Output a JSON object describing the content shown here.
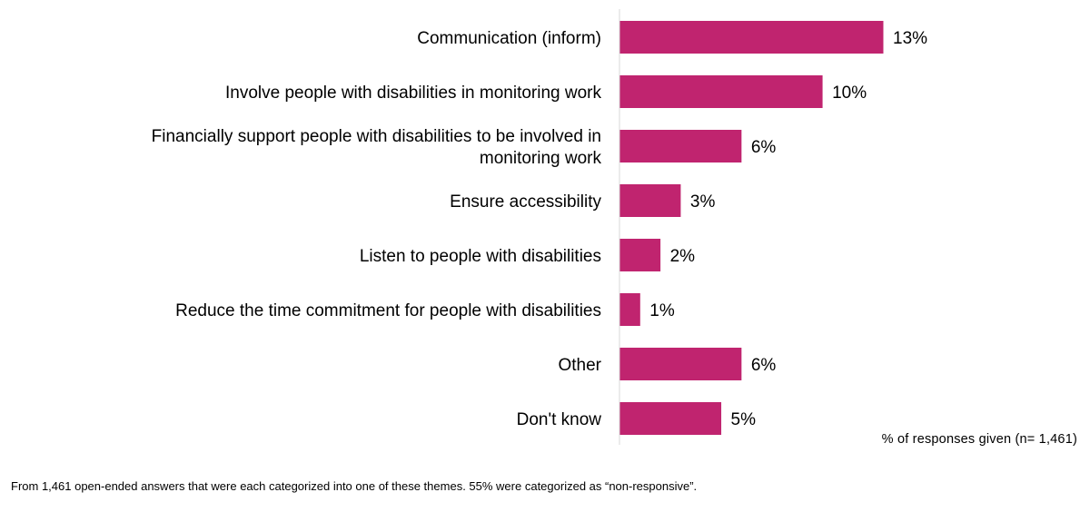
{
  "chart_data": {
    "type": "bar",
    "orientation": "horizontal",
    "categories": [
      [
        "Communication (inform)"
      ],
      [
        "Involve people with disabilities in monitoring work"
      ],
      [
        "Financially support people with disabilities to be involved in",
        "monitoring work"
      ],
      [
        "Ensure accessibility"
      ],
      [
        "Listen to people with disabilities"
      ],
      [
        "Reduce the time commitment for people with disabilities"
      ],
      [
        "Other"
      ],
      [
        "Don't know"
      ]
    ],
    "values": [
      13,
      10,
      6,
      3,
      2,
      1,
      6,
      5
    ],
    "value_labels": [
      "13%",
      "10%",
      "6%",
      "3%",
      "2%",
      "1%",
      "6%",
      "5%"
    ],
    "bar_color": "#C0246F",
    "axis_color": "#D9D9D9",
    "xlim": [
      0,
      13
    ],
    "xlabel": "% of responses given (n= 1,461)",
    "grid": false,
    "legend": "none"
  },
  "footnote": "From 1,461 open-ended answers that were each categorized into one of these themes. 55% were categorized as “non-responsive”."
}
